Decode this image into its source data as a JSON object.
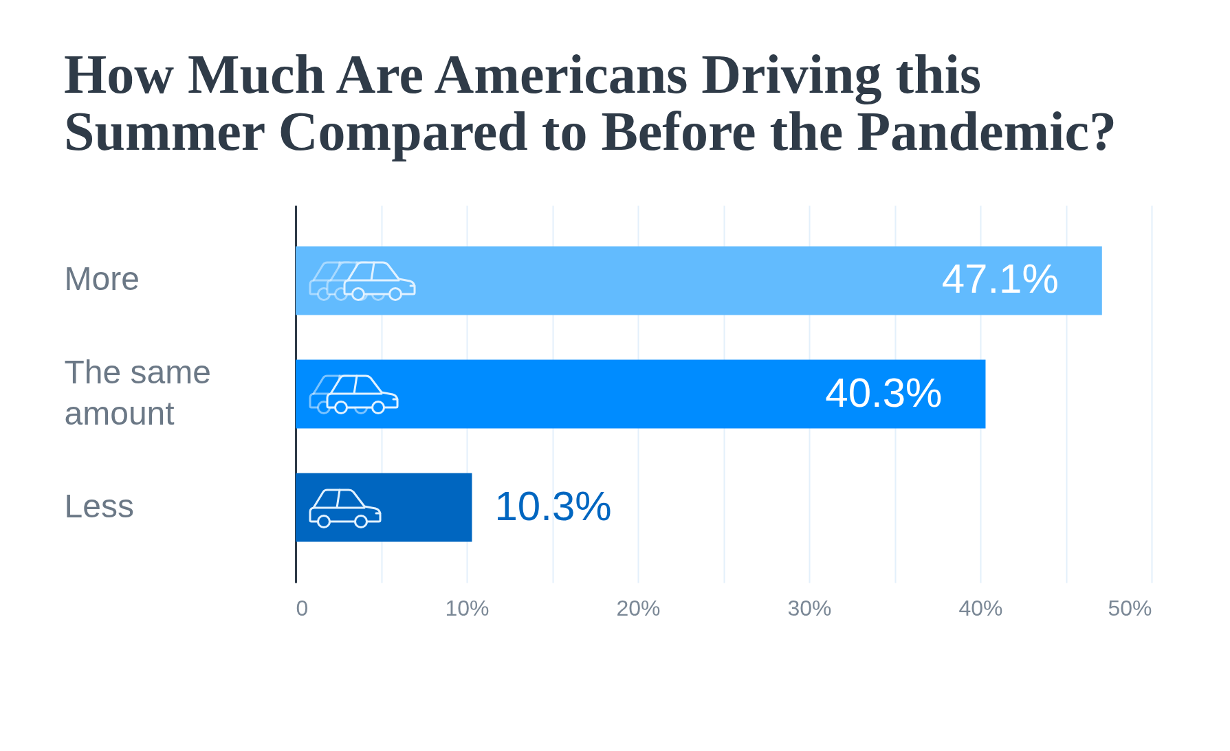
{
  "chart_data": {
    "type": "bar",
    "orientation": "horizontal",
    "title": "How Much Are Americans Driving this Summer Compared to Before the Pandemic?",
    "categories": [
      "More",
      "The same amount",
      "Less"
    ],
    "values": [
      47.1,
      40.3,
      10.3
    ],
    "value_labels": [
      "47.1%",
      "40.3%",
      "10.3%"
    ],
    "colors": [
      "#62bbfe",
      "#008cff",
      "#0066c0"
    ],
    "xlim": [
      0,
      50
    ],
    "xticks": [
      0,
      {
        "value": 5,
        "label": null
      },
      {
        "value": 10,
        "label": "10%"
      },
      {
        "value": 15,
        "label": null
      },
      {
        "value": 20,
        "label": "20%"
      },
      {
        "value": 25,
        "label": null
      },
      {
        "value": 30,
        "label": "30%"
      },
      {
        "value": 35,
        "label": null
      },
      {
        "value": 40,
        "label": "40%"
      },
      {
        "value": 45,
        "label": null
      },
      {
        "value": 50,
        "label": "50%"
      }
    ],
    "grid": "x"
  }
}
